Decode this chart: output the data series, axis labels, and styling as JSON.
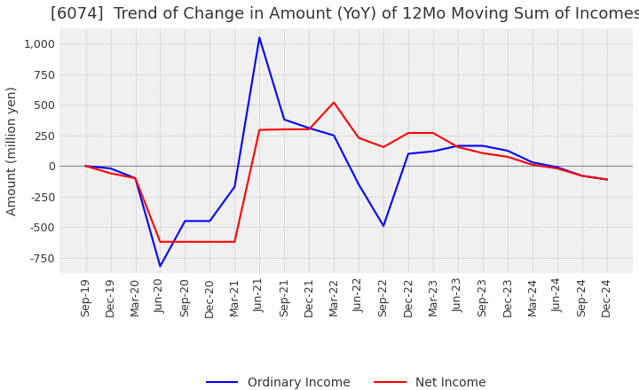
{
  "title": "[6074]  Trend of Change in Amount (YoY) of 12Mo Moving Sum of Incomes",
  "ylabel": "Amount (million yen)",
  "ylim": [
    -875,
    1125
  ],
  "yticks": [
    -750,
    -500,
    -250,
    0,
    250,
    500,
    750,
    1000
  ],
  "x_labels": [
    "Sep-19",
    "Dec-19",
    "Mar-20",
    "Jun-20",
    "Sep-20",
    "Dec-20",
    "Mar-21",
    "Jun-21",
    "Sep-21",
    "Dec-21",
    "Mar-22",
    "Jun-22",
    "Sep-22",
    "Dec-22",
    "Mar-23",
    "Jun-23",
    "Sep-23",
    "Dec-23",
    "Mar-24",
    "Jun-24",
    "Sep-24",
    "Dec-24"
  ],
  "ordinary_income": [
    0,
    -20,
    -100,
    -820,
    -450,
    -450,
    -170,
    1050,
    380,
    310,
    250,
    -150,
    -490,
    100,
    120,
    165,
    165,
    125,
    30,
    -10,
    -80,
    -110
  ],
  "net_income": [
    0,
    -60,
    -100,
    -620,
    -620,
    -620,
    -620,
    295,
    300,
    300,
    520,
    230,
    155,
    270,
    270,
    155,
    105,
    75,
    10,
    -20,
    -80,
    -110
  ],
  "ordinary_color": "#0000ff",
  "net_color": "#ff0000",
  "line_width": 1.5,
  "title_fontsize": 13,
  "tick_fontsize": 9,
  "label_fontsize": 10,
  "background_color": "#ffffff",
  "plot_bg_color": "#f0f0f0",
  "grid_color": "#aaaaaa"
}
